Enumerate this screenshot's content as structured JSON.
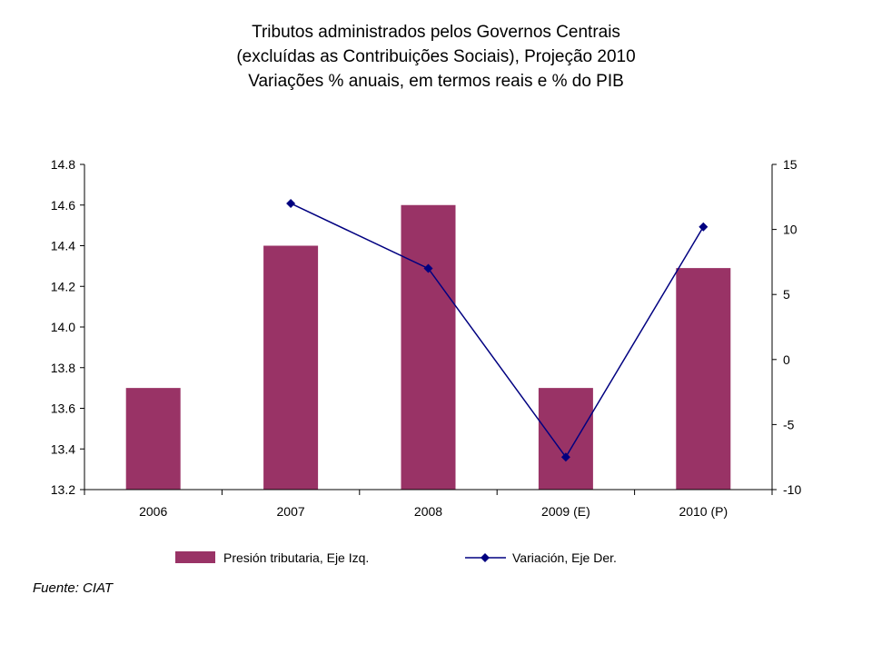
{
  "title": {
    "line1": "Tributos administrados pelos Governos Centrais",
    "line2": "(excluídas as Contribuições Sociais), Projeção 2010",
    "line3": "Variações % anuais, em termos reais e % do PIB"
  },
  "source": "Fuente: CIAT",
  "colors": {
    "bar": "#993366",
    "line": "#000080",
    "axis": "#000000"
  },
  "chart_data": {
    "type": "bar+line",
    "categories": [
      "2006",
      "2007",
      "2008",
      "2009 (E)",
      "2010 (P)"
    ],
    "series": [
      {
        "name": "Presión tributaria, Eje Izq.",
        "type": "bar",
        "axis": "left",
        "values": [
          13.7,
          14.4,
          14.6,
          13.7,
          14.29
        ]
      },
      {
        "name": "Variación, Eje Der.",
        "type": "line",
        "axis": "right",
        "values": [
          null,
          12.0,
          7.0,
          -7.5,
          10.2
        ]
      }
    ],
    "y_left": {
      "min": 13.2,
      "max": 14.8,
      "ticks": [
        "13.2",
        "13.4",
        "13.6",
        "13.8",
        "14.0",
        "14.2",
        "14.4",
        "14.6",
        "14.8"
      ]
    },
    "y_right": {
      "min": -10,
      "max": 15,
      "ticks": [
        "-10",
        "-5",
        "0",
        "5",
        "10",
        "15"
      ]
    },
    "legend": "bottom",
    "grid": false
  }
}
